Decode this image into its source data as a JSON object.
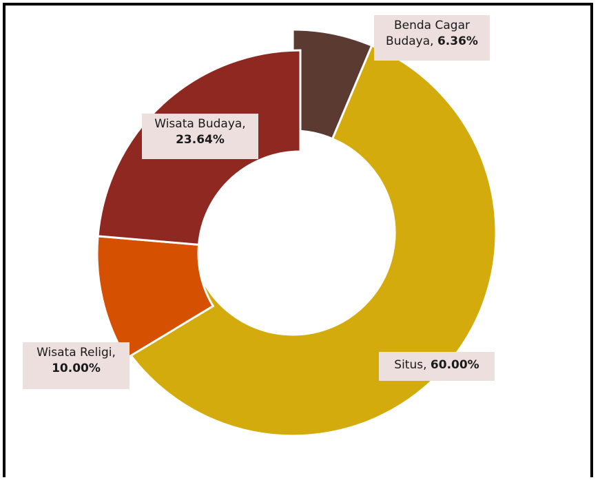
{
  "chart_data": {
    "type": "pie",
    "subtype": "donut",
    "title": "",
    "slices": [
      {
        "label": "Benda Cagar Budaya",
        "label_line1": "Benda Cagar",
        "label_line2": "Budaya,",
        "value_text": "6.36%",
        "value": 6.36,
        "color": "#5b3a32",
        "exploded": true
      },
      {
        "label": "Situs",
        "label_line1": "Situs,",
        "value_text": "60.00%",
        "value": 60.0,
        "color": "#d4ab0c",
        "exploded": true
      },
      {
        "label": "Wisata Religi",
        "label_line1": "Wisata Religi,",
        "value_text": "10.00%",
        "value": 10.0,
        "color": "#d55000",
        "exploded": false
      },
      {
        "label": "Wisata Budaya",
        "label_line1": "Wisata Budaya,",
        "value_text": "23.64%",
        "value": 23.64,
        "color": "#8e2820",
        "exploded": false
      }
    ],
    "legend": "none",
    "labels": "callout-boxes"
  }
}
